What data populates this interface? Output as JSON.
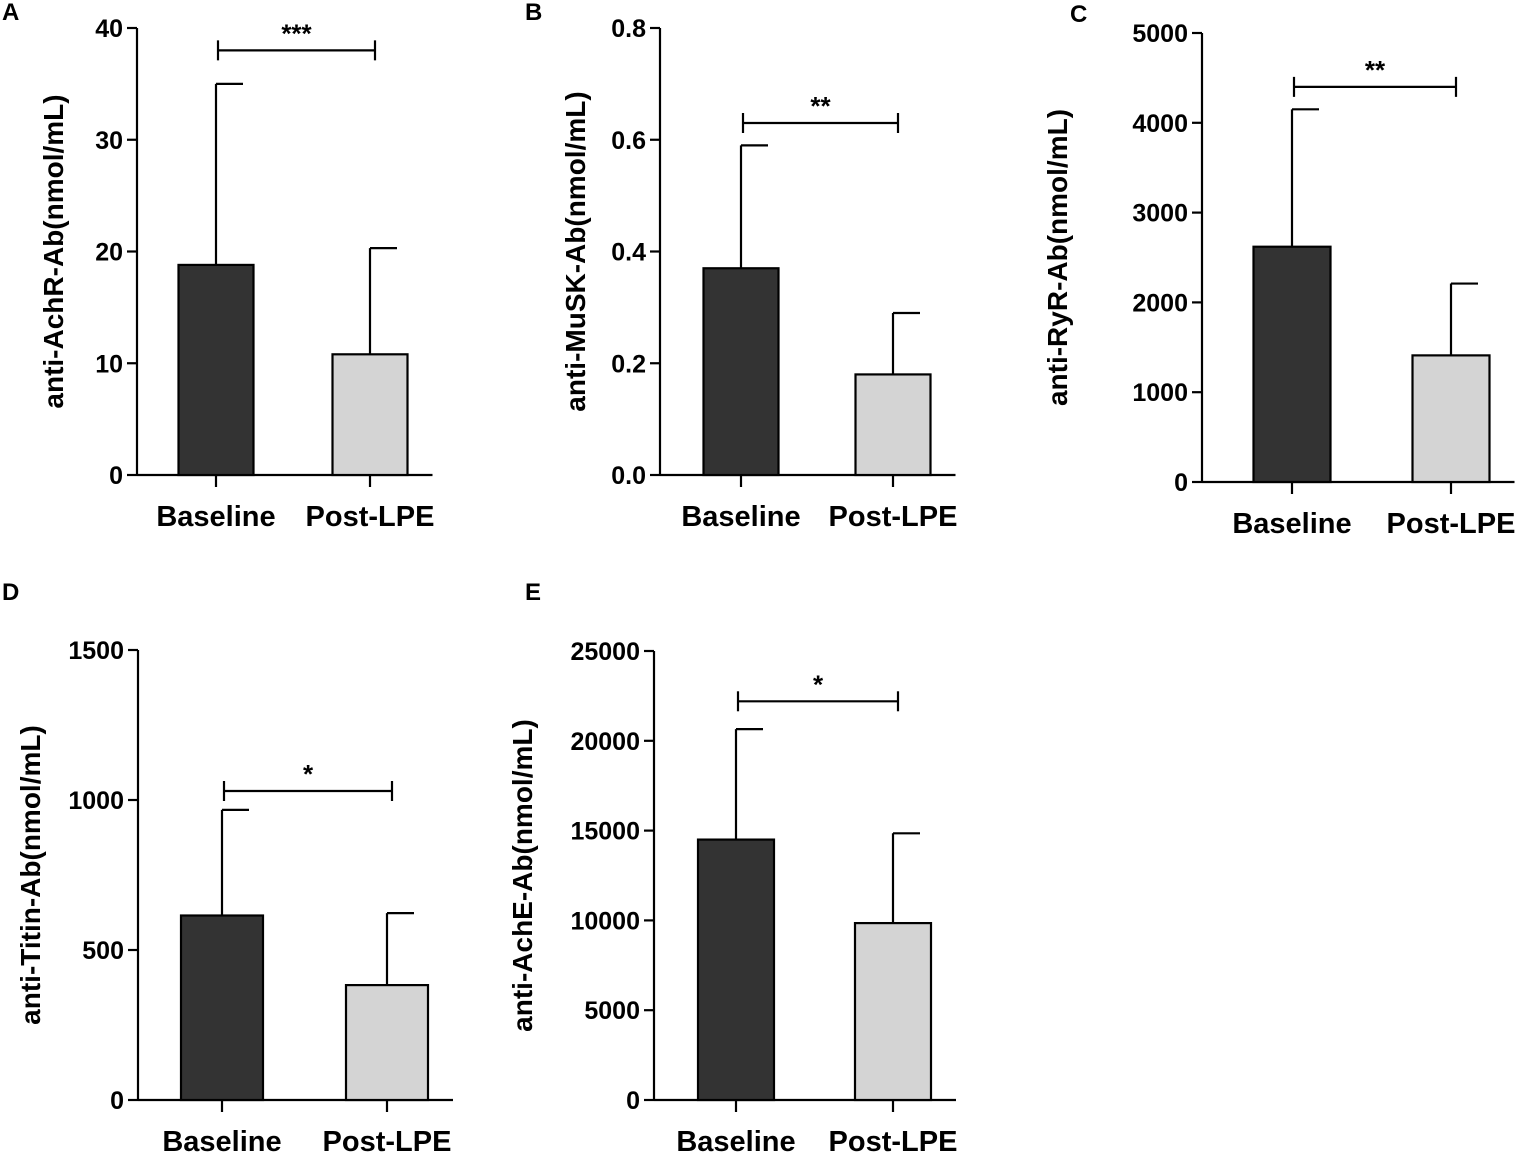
{
  "colors": {
    "baseline_fill": "#333333",
    "post_fill": "#d4d4d4",
    "axis": "#000000"
  },
  "chart_data": [
    {
      "panel": "A",
      "type": "bar",
      "categories": [
        "Baseline",
        "Post-LPE"
      ],
      "values": [
        18.8,
        10.8
      ],
      "errors": [
        16.2,
        9.5
      ],
      "ylabel": "anti-AchR-Ab(nmol/mL)",
      "ylim": [
        0,
        40
      ],
      "yticks": [
        0,
        10,
        20,
        30,
        40
      ],
      "ytick_labels": [
        "0",
        "10",
        "20",
        "30",
        "40"
      ],
      "significance": {
        "label": "***",
        "y": 38.0
      }
    },
    {
      "panel": "B",
      "type": "bar",
      "categories": [
        "Baseline",
        "Post-LPE"
      ],
      "values": [
        0.37,
        0.18
      ],
      "errors": [
        0.22,
        0.11
      ],
      "ylabel": "anti-MuSK-Ab(nmol/mL)",
      "ylim": [
        0,
        0.8
      ],
      "yticks": [
        0,
        0.2,
        0.4,
        0.6,
        0.8
      ],
      "ytick_labels": [
        "0.0",
        "0.2",
        "0.4",
        "0.6",
        "0.8"
      ],
      "significance": {
        "label": "**",
        "y": 0.63
      }
    },
    {
      "panel": "C",
      "type": "bar",
      "categories": [
        "Baseline",
        "Post-LPE"
      ],
      "values": [
        2620,
        1410
      ],
      "errors": [
        1530,
        800
      ],
      "ylabel": "anti-RyR-Ab(nmol/mL)",
      "ylim": [
        0,
        5000
      ],
      "yticks": [
        0,
        1000,
        2000,
        3000,
        4000,
        5000
      ],
      "ytick_labels": [
        "0",
        "1000",
        "2000",
        "3000",
        "4000",
        "5000"
      ],
      "significance": {
        "label": "**",
        "y": 4400
      }
    },
    {
      "panel": "D",
      "type": "bar",
      "categories": [
        "Baseline",
        "Post-LPE"
      ],
      "values": [
        615,
        383
      ],
      "errors": [
        352,
        240
      ],
      "ylabel": "anti-Titin-Ab(nmol/mL)",
      "ylim": [
        0,
        1500
      ],
      "yticks": [
        0,
        500,
        1000,
        1500
      ],
      "ytick_labels": [
        "0",
        "500",
        "1000",
        "1500"
      ],
      "significance": {
        "label": "*",
        "y": 1030
      }
    },
    {
      "panel": "E",
      "type": "bar",
      "categories": [
        "Baseline",
        "Post-LPE"
      ],
      "values": [
        14500,
        9850
      ],
      "errors": [
        6150,
        5000
      ],
      "ylabel": "anti-AchE-Ab(nmol/mL)",
      "ylim": [
        0,
        25000
      ],
      "yticks": [
        0,
        5000,
        10000,
        15000,
        20000,
        25000
      ],
      "ytick_labels": [
        "0",
        "5000",
        "10000",
        "15000",
        "20000",
        "25000"
      ],
      "significance": {
        "label": "*",
        "y": 22200
      }
    }
  ]
}
